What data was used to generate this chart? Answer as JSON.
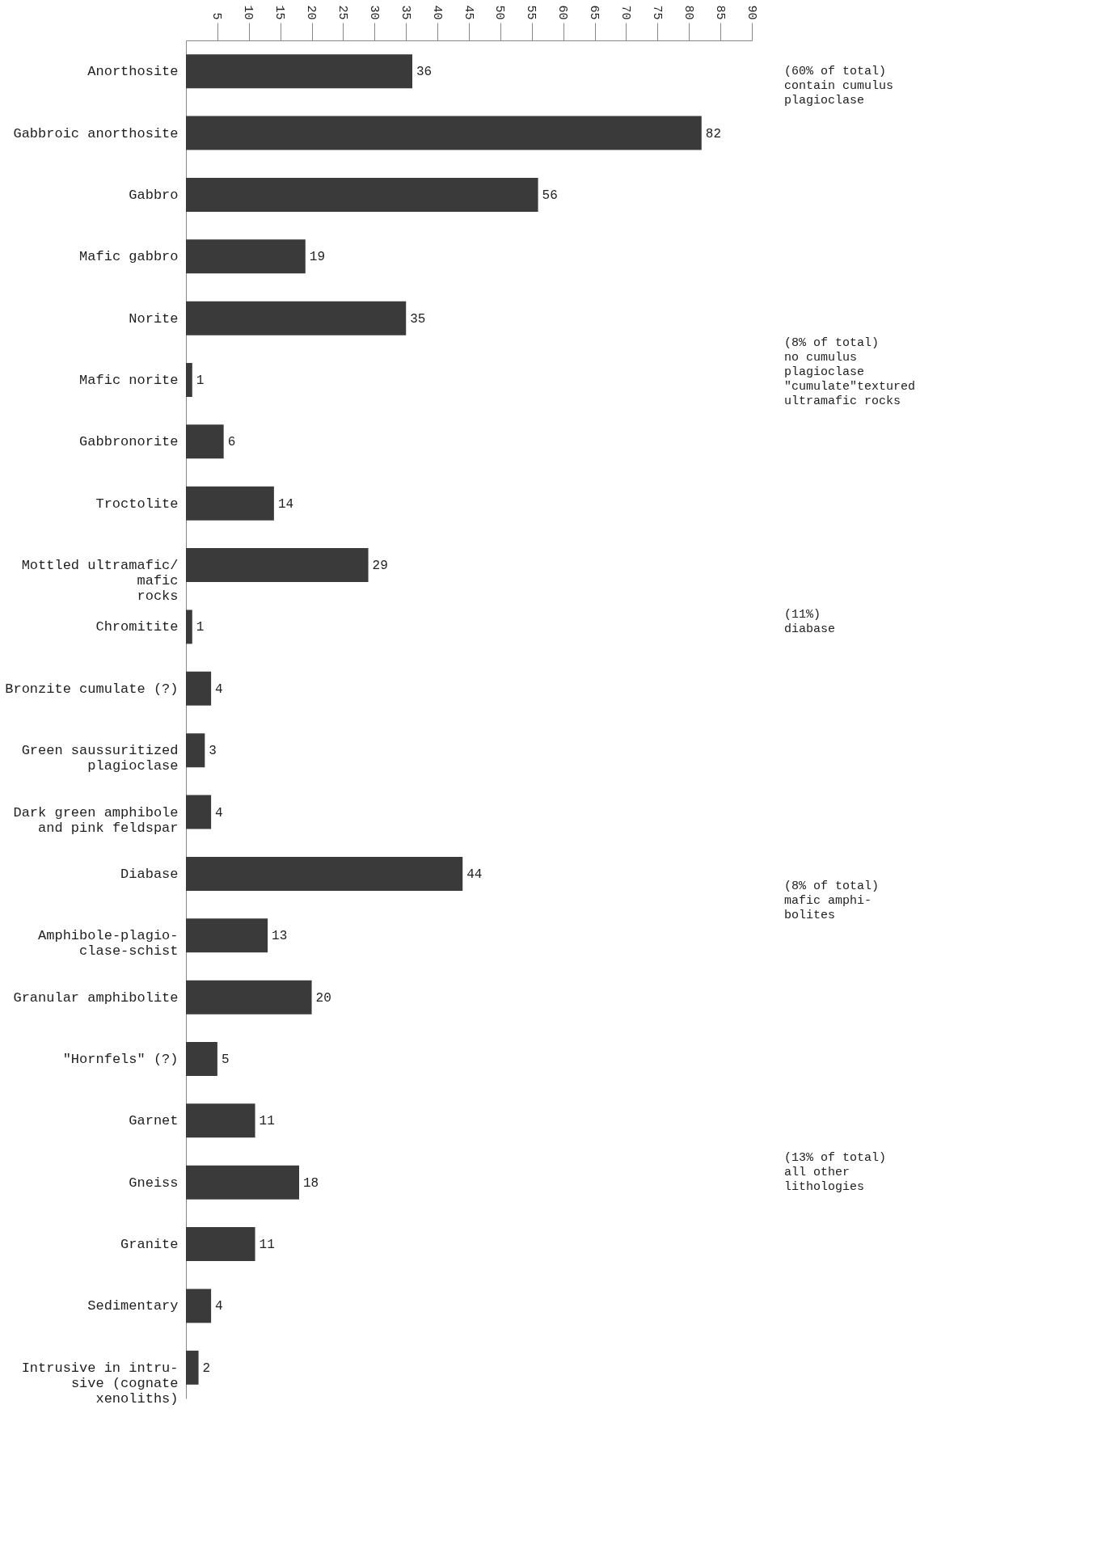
{
  "chart_data": {
    "type": "bar",
    "orientation": "horizontal",
    "data_labels": true,
    "grid": false,
    "color": "#3a3a3a",
    "categories": [
      "Anorthosite",
      "Gabbroic anorthosite",
      "Gabbro",
      "Mafic gabbro",
      "Norite",
      "Mafic norite",
      "Gabbronorite",
      "Troctolite",
      "Mottled ultramafic/\nmafic\nrocks",
      "Chromitite",
      "Bronzite cumulate (?)",
      "Green saussuritized\nplagioclase",
      "Dark green amphibole\nand pink feldspar",
      "Diabase",
      "Amphibole-plagio-\nclase-schist",
      "Granular amphibolite",
      "\"Hornfels\" (?)",
      "Garnet",
      "Gneiss",
      "Granite",
      "Sedimentary",
      "Intrusive in intru-\nsive (cognate\nxenoliths)"
    ],
    "values": [
      36,
      82,
      56,
      19,
      35,
      1,
      6,
      14,
      29,
      1,
      4,
      3,
      4,
      44,
      13,
      20,
      5,
      11,
      18,
      11,
      4,
      2
    ],
    "xlim": [
      0,
      90
    ],
    "xticks": [
      5,
      10,
      15,
      20,
      25,
      30,
      35,
      40,
      45,
      50,
      55,
      60,
      65,
      70,
      75,
      80,
      85,
      90
    ],
    "annotations": [
      "(60% of total)\ncontain cumulus\nplagioclase",
      "(8% of total)\nno cumulus\nplagioclase\n\"cumulate\"textured\nultramafic rocks",
      "(11%)\ndiabase",
      "(8% of total)\nmafic amphi-\nbolites",
      "(13% of total)\nall other\nlithologies"
    ]
  }
}
